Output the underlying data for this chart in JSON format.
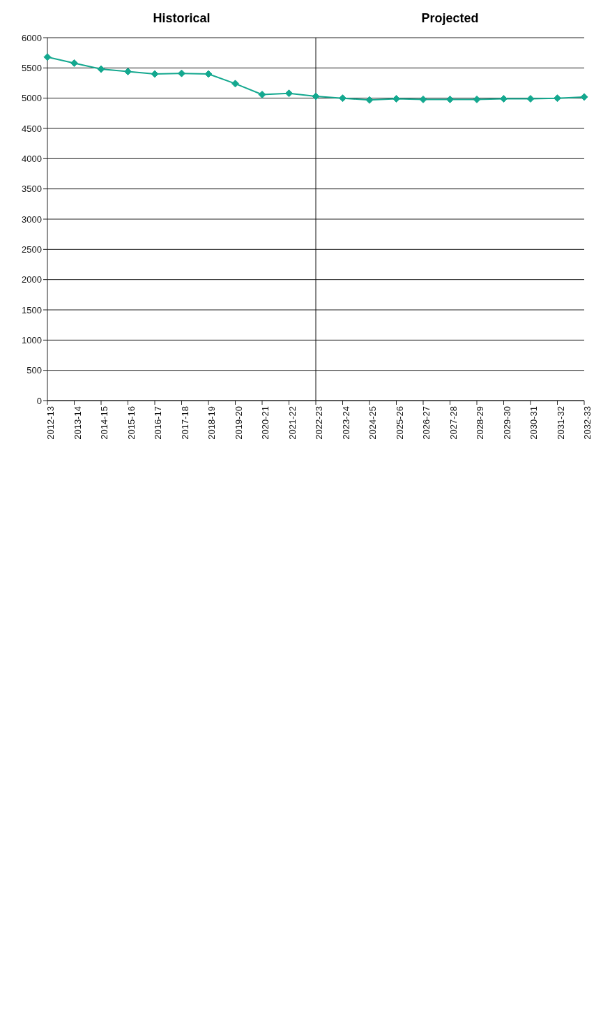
{
  "chart_data": {
    "type": "line",
    "categories": [
      "2012-13",
      "2013-14",
      "2014-15",
      "2015-16",
      "2016-17",
      "2017-18",
      "2018-19",
      "2019-20",
      "2020-21",
      "2021-22",
      "2022-23",
      "2023-24",
      "2024-25",
      "2025-26",
      "2026-27",
      "2027-28",
      "2028-29",
      "2029-30",
      "2030-31",
      "2031-32",
      "2032-33"
    ],
    "series": [
      {
        "color": "#14a88f",
        "values": [
          5680,
          5580,
          5480,
          5440,
          5400,
          5410,
          5400,
          5240,
          5060,
          5080,
          5030,
          5000,
          4970,
          4990,
          4980,
          4980,
          4980,
          4990,
          4990,
          5000,
          5020
        ]
      }
    ],
    "ylim": [
      0,
      6000
    ],
    "yticks": [
      0,
      500,
      1000,
      1500,
      2000,
      2500,
      3000,
      3500,
      4000,
      4500,
      5000,
      5500,
      6000
    ],
    "grid": "y",
    "marker": "diamond",
    "line_style": "solid",
    "ref_lines": [
      {
        "axis": "x",
        "value": "2022-23"
      }
    ],
    "annotations": [
      "Historical",
      "Projected"
    ]
  }
}
